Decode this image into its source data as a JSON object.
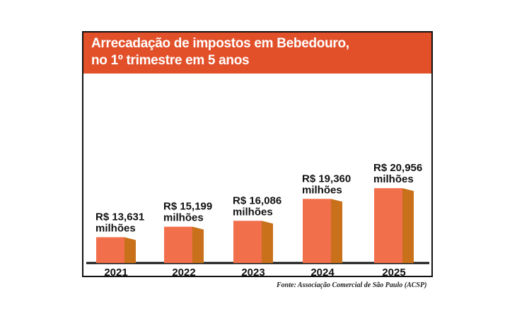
{
  "colors": {
    "header": "#e2502a",
    "bar_front": "#f26f4c",
    "bar_side": "#c8711a",
    "axis": "#111111"
  },
  "chart_data": {
    "type": "bar",
    "title": "Arrecadação de impostos em Bebedouro,",
    "subtitle": "no 1º trimestre em 5 anos",
    "categories": [
      "2021",
      "2022",
      "2023",
      "2024",
      "2025"
    ],
    "values": [
      13.631,
      15.199,
      16.086,
      19.36,
      20.956
    ],
    "value_labels": [
      [
        "R$ 13,631",
        "milhões"
      ],
      [
        "R$ 15,199",
        "milhões"
      ],
      [
        "R$ 16,086",
        "milhões"
      ],
      [
        "R$ 19,360",
        "milhões"
      ],
      [
        "R$ 20,956",
        "milhões"
      ]
    ],
    "grid": false,
    "legend": "none"
  },
  "source": "Fonte: Associação Comercial de São Paulo (ACSP)"
}
